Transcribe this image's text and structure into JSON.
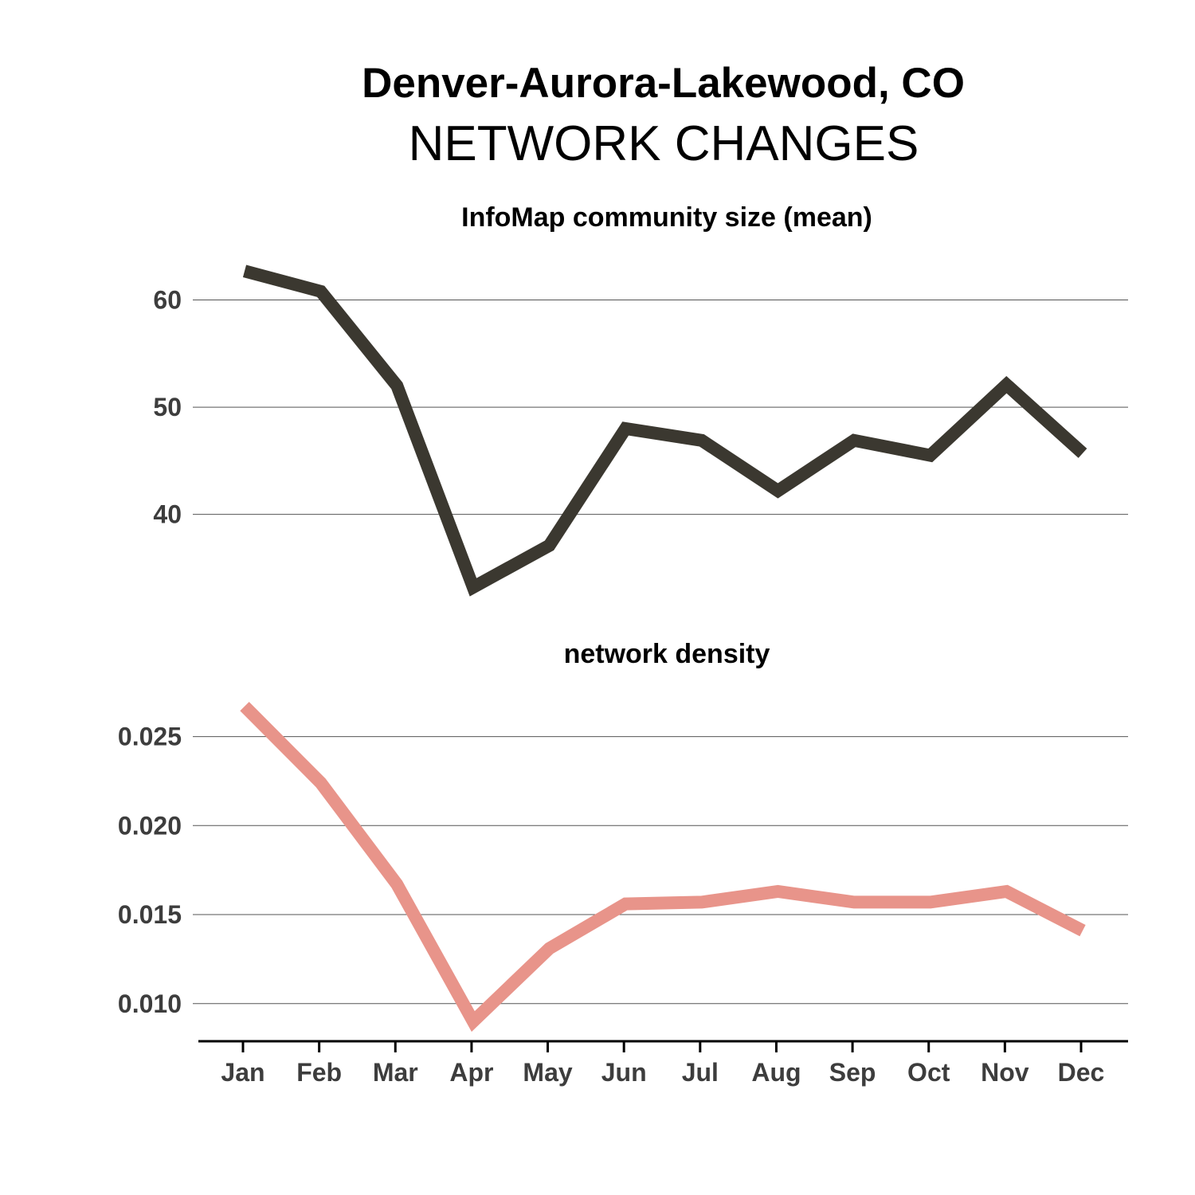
{
  "title": "Denver-Aurora-Lakewood, CO",
  "subtitle": "NETWORK CHANGES",
  "chart_data": [
    {
      "type": "line",
      "title": "InfoMap community size (mean)",
      "categories": [
        "Jan",
        "Feb",
        "Mar",
        "Apr",
        "May",
        "Jun",
        "Jul",
        "Aug",
        "Sep",
        "Oct",
        "Nov",
        "Dec"
      ],
      "values": [
        62.7,
        60.8,
        52.0,
        33.2,
        37.1,
        48.0,
        46.9,
        42.2,
        46.9,
        45.5,
        52.1,
        45.7
      ],
      "yticks": [
        40,
        50,
        60
      ],
      "ytick_labels": [
        "40",
        "50",
        "60"
      ],
      "ylim": [
        31.5,
        64.5
      ],
      "color": "#3b3830",
      "grid": true
    },
    {
      "type": "line",
      "title": "network density",
      "categories": [
        "Jan",
        "Feb",
        "Mar",
        "Apr",
        "May",
        "Jun",
        "Jul",
        "Aug",
        "Sep",
        "Oct",
        "Nov",
        "Dec"
      ],
      "values": [
        0.0267,
        0.0224,
        0.0167,
        0.009,
        0.0131,
        0.0156,
        0.0157,
        0.0163,
        0.0157,
        0.0157,
        0.0163,
        0.0141
      ],
      "yticks": [
        0.01,
        0.015,
        0.02,
        0.025
      ],
      "ytick_labels": [
        "0.010",
        "0.015",
        "0.020",
        "0.025"
      ],
      "ylim": [
        0.0082,
        0.0278
      ],
      "color": "#e8948a",
      "grid": true
    }
  ]
}
